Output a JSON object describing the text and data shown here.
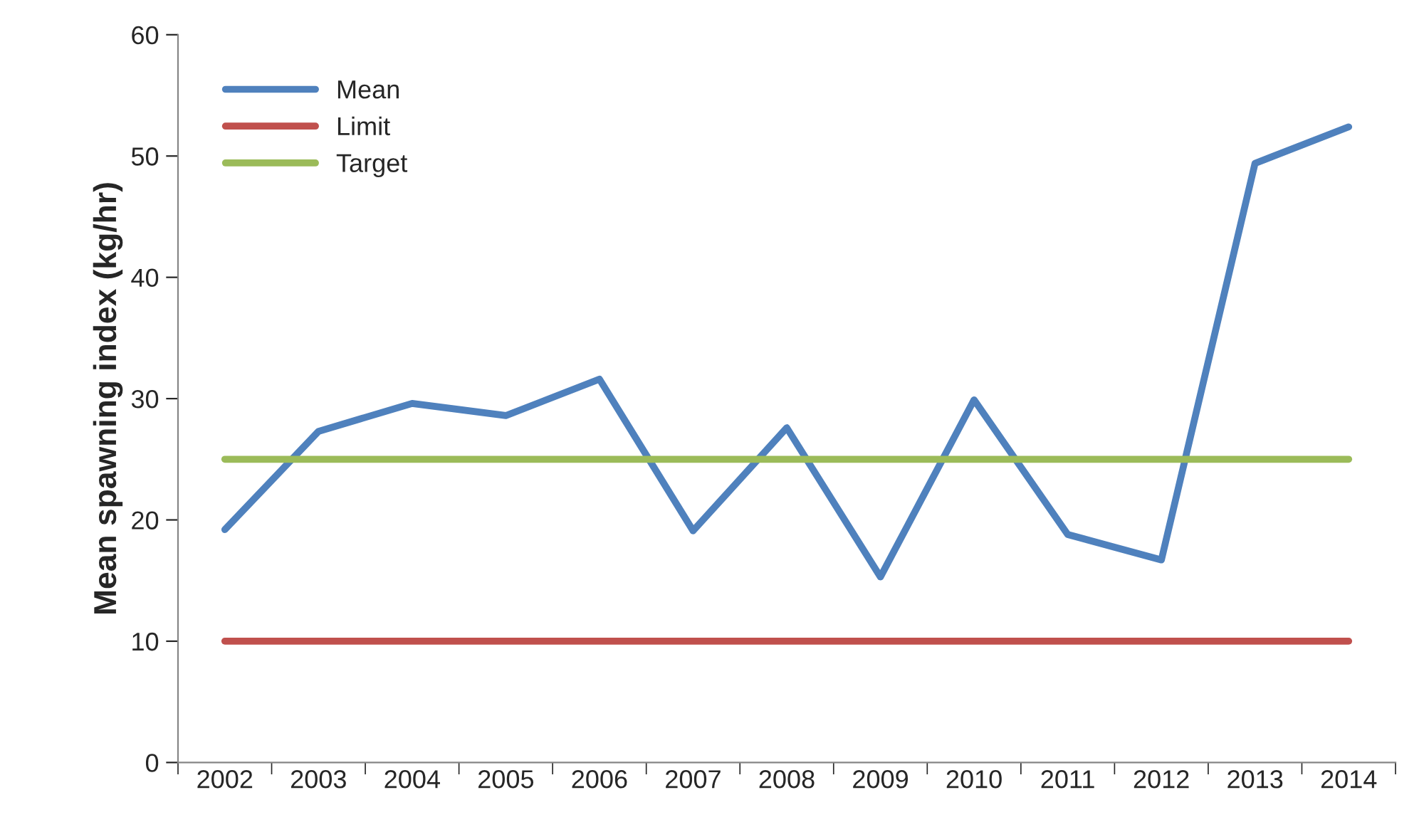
{
  "chart_data": {
    "type": "line",
    "ylabel": "Mean spawning index (kg/hr)",
    "categories": [
      "2002",
      "2003",
      "2004",
      "2005",
      "2006",
      "2007",
      "2008",
      "2009",
      "2010",
      "2011",
      "2012",
      "2013",
      "2014"
    ],
    "series": [
      {
        "name": "Mean",
        "color": "#4f81bd",
        "values": [
          19.2,
          27.3,
          29.6,
          28.6,
          31.6,
          19.1,
          27.6,
          15.3,
          29.9,
          18.8,
          16.7,
          49.4,
          52.4
        ]
      },
      {
        "name": "Limit",
        "color": "#c0504d",
        "values": [
          10,
          10,
          10,
          10,
          10,
          10,
          10,
          10,
          10,
          10,
          10,
          10,
          10
        ]
      },
      {
        "name": "Target",
        "color": "#9bbb59",
        "values": [
          25,
          25,
          25,
          25,
          25,
          25,
          25,
          25,
          25,
          25,
          25,
          25,
          25
        ]
      }
    ],
    "ylim": [
      0,
      60
    ],
    "yticks": [
      0,
      10,
      20,
      30,
      40,
      50,
      60
    ],
    "grid": false,
    "legend": "top left",
    "marker": "none",
    "line_style": "solid"
  }
}
